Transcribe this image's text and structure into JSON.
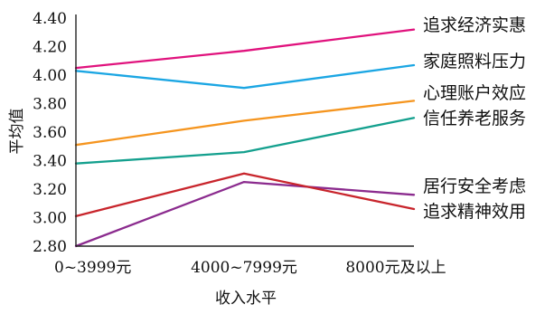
{
  "chart_data": {
    "type": "line",
    "categories": [
      "0~3999元",
      "4000~7999元",
      "8000元及以上"
    ],
    "xlabel": "收入水平",
    "ylabel": "平均值",
    "ylim": [
      2.8,
      4.4
    ],
    "yticks": [
      "4.40",
      "4.20",
      "4.00",
      "3.80",
      "3.60",
      "3.40",
      "3.20",
      "3.00",
      "2.80"
    ],
    "grid": false,
    "series": [
      {
        "name": "追求经济实惠",
        "values": [
          4.05,
          4.17,
          4.32
        ],
        "color": "#e0127d"
      },
      {
        "name": "家庭照料压力",
        "values": [
          4.03,
          3.91,
          4.07
        ],
        "color": "#1ba6e3"
      },
      {
        "name": "心理账户效应",
        "values": [
          3.51,
          3.68,
          3.82
        ],
        "color": "#f5951f"
      },
      {
        "name": "信任养老服务",
        "values": [
          3.38,
          3.46,
          3.7
        ],
        "color": "#14a08e"
      },
      {
        "name": "居行安全考虑",
        "values": [
          2.8,
          3.25,
          3.16
        ],
        "color": "#8b2b8e"
      },
      {
        "name": "追求精神效用",
        "values": [
          3.01,
          3.31,
          3.06
        ],
        "color": "#c8252c"
      }
    ]
  }
}
